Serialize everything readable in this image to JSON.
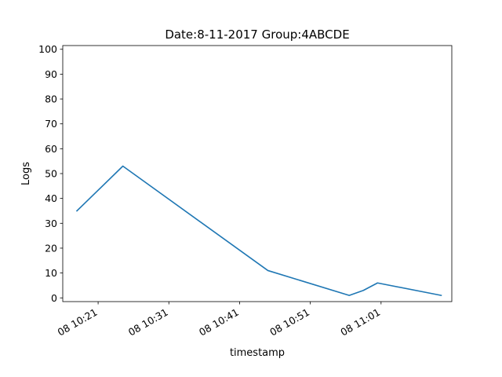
{
  "chart_data": {
    "type": "line",
    "title": "Date:8-11-2017  Group:4ABCDE",
    "xlabel": "timestamp",
    "ylabel": "Logs",
    "x_axis": {
      "kind": "time",
      "range": [
        "2017-08-11 10:16:00",
        "2017-08-11 11:11:00"
      ],
      "ticks": [
        {
          "t": "2017-08-11 10:21:00",
          "label": "08 10:21"
        },
        {
          "t": "2017-08-11 10:31:00",
          "label": "08 10:31"
        },
        {
          "t": "2017-08-11 10:41:00",
          "label": "08 10:41"
        },
        {
          "t": "2017-08-11 10:51:00",
          "label": "08 10:51"
        },
        {
          "t": "2017-08-11 11:01:00",
          "label": "08 11:01"
        }
      ]
    },
    "y_axis": {
      "range": [
        -1.5,
        101.5
      ],
      "ticks": [
        0,
        10,
        20,
        30,
        40,
        50,
        60,
        70,
        80,
        90,
        100
      ]
    },
    "grid": false,
    "series": [
      {
        "color": "#1f77b4",
        "points": [
          {
            "x": "2017-08-11 10:18:00",
            "y": 35
          },
          {
            "x": "2017-08-11 10:24:30",
            "y": 53
          },
          {
            "x": "2017-08-11 10:45:00",
            "y": 11
          },
          {
            "x": "2017-08-11 10:56:30",
            "y": 1
          },
          {
            "x": "2017-08-11 10:58:30",
            "y": 3
          },
          {
            "x": "2017-08-11 11:00:30",
            "y": 6
          },
          {
            "x": "2017-08-11 11:09:30",
            "y": 1
          }
        ]
      }
    ]
  }
}
